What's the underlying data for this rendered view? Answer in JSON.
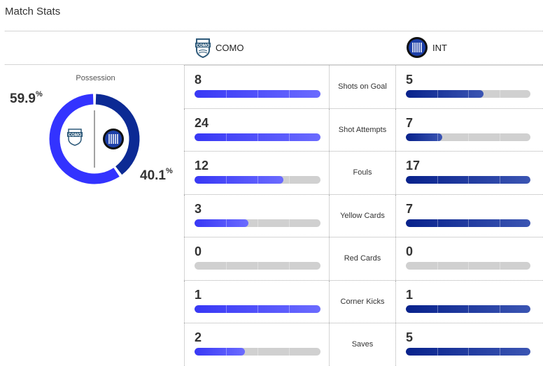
{
  "title": "Match Stats",
  "home": {
    "name": "COMO",
    "color": "#3333ff"
  },
  "away": {
    "name": "INT",
    "color": "#0c2a94"
  },
  "possession": {
    "label": "Possession",
    "home": 59.9,
    "away": 40.1,
    "home_text": "59.9",
    "away_text": "40.1",
    "unit": "%"
  },
  "stats": [
    {
      "label": "Shots on Goal",
      "home": 8,
      "away": 5
    },
    {
      "label": "Shot Attempts",
      "home": 24,
      "away": 7
    },
    {
      "label": "Fouls",
      "home": 12,
      "away": 17
    },
    {
      "label": "Yellow Cards",
      "home": 3,
      "away": 7
    },
    {
      "label": "Red Cards",
      "home": 0,
      "away": 0
    },
    {
      "label": "Corner Kicks",
      "home": 1,
      "away": 1
    },
    {
      "label": "Saves",
      "home": 2,
      "away": 5
    }
  ]
}
